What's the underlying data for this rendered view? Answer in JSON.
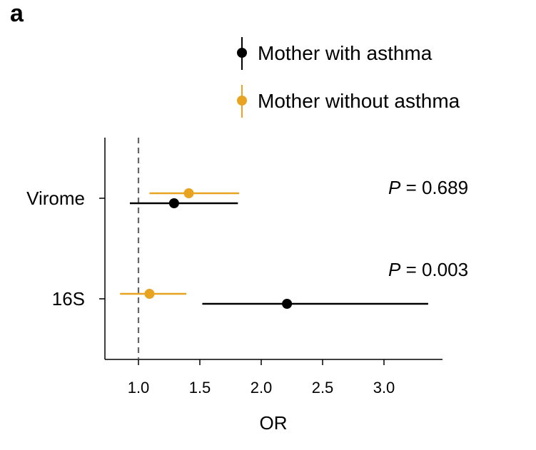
{
  "panel_label": "a",
  "chart_data": {
    "type": "forest",
    "xlabel": "OR",
    "ylabel": "",
    "xlim": [
      0.75,
      3.45
    ],
    "xticks": [
      1.0,
      1.5,
      2.0,
      2.5,
      3.0
    ],
    "xtick_labels": [
      "1.0",
      "1.5",
      "2.0",
      "2.5",
      "3.0"
    ],
    "reference_line": 1.0,
    "categories": [
      "Virome",
      "16S"
    ],
    "legend_position": "top-right",
    "series": [
      {
        "name": "Mother with asthma",
        "color": "#000000",
        "points": [
          {
            "category": "Virome",
            "or": 1.29,
            "ci_low": 0.93,
            "ci_high": 1.81
          },
          {
            "category": "16S",
            "or": 2.21,
            "ci_low": 1.52,
            "ci_high": 3.36
          }
        ]
      },
      {
        "name": "Mother without asthma",
        "color": "#E8A321",
        "points": [
          {
            "category": "Virome",
            "or": 1.41,
            "ci_low": 1.09,
            "ci_high": 1.82
          },
          {
            "category": "16S",
            "or": 1.09,
            "ci_low": 0.85,
            "ci_high": 1.39
          }
        ]
      }
    ],
    "annotations": [
      {
        "category": "Virome",
        "p_symbol": "P",
        "text": " = 0.689"
      },
      {
        "category": "16S",
        "p_symbol": "P",
        "text": " = 0.003"
      }
    ]
  }
}
